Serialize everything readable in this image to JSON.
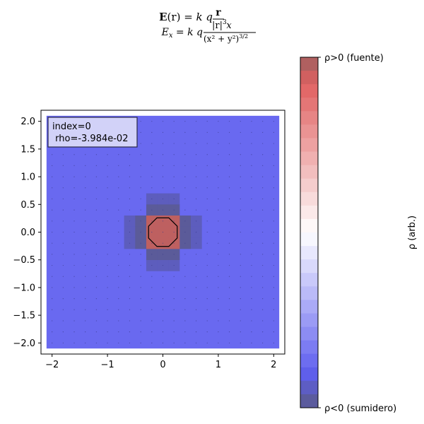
{
  "chart_data": {
    "type": "heatmap",
    "title_line1": "E(r) = k q r / |r|³",
    "title_line2": "Eₓ = k q x / (x² + y²)^(3/2)",
    "title": {
      "l1_E": "E",
      "l1_r": "(r)",
      "l1_eq": " = ",
      "l1_kq": "k q",
      "l1_num": "r",
      "l1_den": "|r|",
      "l1_den_pow": "3",
      "l2_E": "E",
      "l2_sub": "x",
      "l2_eq": " = ",
      "l2_kq": "k q",
      "l2_num": "x",
      "l2_den": "(x² + y²)",
      "l2_den_pow": "3/2"
    },
    "x_range": [
      -2.2,
      2.2
    ],
    "y_range": [
      -2.2,
      2.2
    ],
    "grid_extent": [
      -2.1,
      2.1
    ],
    "grid_n": 21,
    "x_ticks": [
      -2,
      -1,
      0,
      1,
      2
    ],
    "x_tick_labels": [
      "−2",
      "−1",
      "0",
      "1",
      "2"
    ],
    "y_ticks": [
      -2.0,
      -1.5,
      -1.0,
      -0.5,
      0.0,
      0.5,
      1.0,
      1.5,
      2.0
    ],
    "y_tick_labels": [
      "−2.0",
      "−1.5",
      "−1.0",
      "−0.5",
      "0.0",
      "0.5",
      "1.0",
      "1.5",
      "2.0"
    ],
    "background_value": -0.75,
    "cells": [
      {
        "i": 9,
        "j": 7,
        "v": -0.9
      },
      {
        "i": 10,
        "j": 7,
        "v": -0.9
      },
      {
        "i": 11,
        "j": 7,
        "v": -0.9
      },
      {
        "i": 9,
        "j": 13,
        "v": -0.9
      },
      {
        "i": 10,
        "j": 13,
        "v": -0.9
      },
      {
        "i": 11,
        "j": 13,
        "v": -0.9
      },
      {
        "i": 7,
        "j": 9,
        "v": -0.9
      },
      {
        "i": 7,
        "j": 10,
        "v": -0.9
      },
      {
        "i": 7,
        "j": 11,
        "v": -0.9
      },
      {
        "i": 13,
        "j": 9,
        "v": -0.9
      },
      {
        "i": 13,
        "j": 10,
        "v": -0.9
      },
      {
        "i": 13,
        "j": 11,
        "v": -0.9
      },
      {
        "i": 9,
        "j": 8,
        "v": -0.97
      },
      {
        "i": 10,
        "j": 8,
        "v": -0.97
      },
      {
        "i": 11,
        "j": 8,
        "v": -0.97
      },
      {
        "i": 9,
        "j": 12,
        "v": -0.97
      },
      {
        "i": 10,
        "j": 12,
        "v": -0.97
      },
      {
        "i": 11,
        "j": 12,
        "v": -0.97
      },
      {
        "i": 8,
        "j": 9,
        "v": -0.97
      },
      {
        "i": 8,
        "j": 10,
        "v": -0.97
      },
      {
        "i": 8,
        "j": 11,
        "v": -0.97
      },
      {
        "i": 12,
        "j": 9,
        "v": -0.97
      },
      {
        "i": 12,
        "j": 10,
        "v": -0.97
      },
      {
        "i": 12,
        "j": 11,
        "v": -0.97
      },
      {
        "i": 9,
        "j": 9,
        "v": 0.93
      },
      {
        "i": 10,
        "j": 9,
        "v": 0.93
      },
      {
        "i": 11,
        "j": 9,
        "v": 0.93
      },
      {
        "i": 9,
        "j": 10,
        "v": 0.93
      },
      {
        "i": 10,
        "j": 10,
        "v": 0.93
      },
      {
        "i": 11,
        "j": 10,
        "v": 0.93
      },
      {
        "i": 9,
        "j": 11,
        "v": 0.93
      },
      {
        "i": 10,
        "j": 11,
        "v": 0.93
      },
      {
        "i": 11,
        "j": 11,
        "v": 0.93
      }
    ],
    "octagon": {
      "center": [
        0,
        0
      ],
      "radius": 0.28
    },
    "colorbar": {
      "label": "ρ (arb.)",
      "top_label": "ρ>0 (fuente)",
      "bottom_label": "ρ<0 (sumidero)",
      "bands": 26,
      "range": [
        -1,
        1
      ]
    },
    "info_box": {
      "line1": "index=0",
      "line2": " rho=-3.984e-02"
    },
    "colors": {
      "negative": "#5f5fef",
      "deep_negative": "#5a5a8a",
      "positive": "#e06060",
      "deep_positive": "#a06060",
      "neutral": "#ffffff",
      "info_box_fill": "#d2d2f8",
      "info_box_stroke": "#2a2a4a",
      "arrow_dot": "#3a3a8a"
    }
  }
}
